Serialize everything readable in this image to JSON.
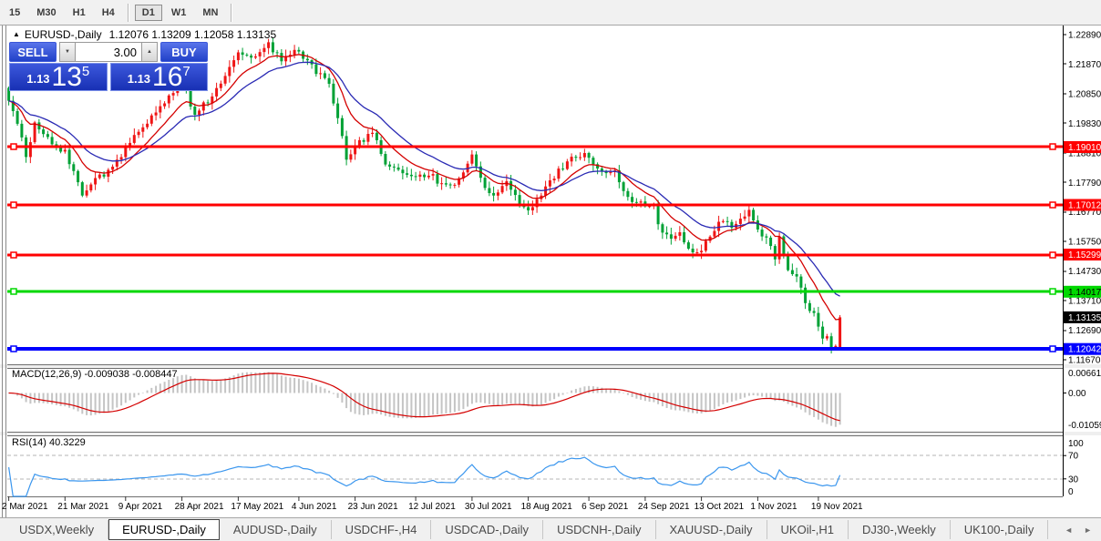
{
  "toolbar": {
    "timeframes": [
      {
        "label": "15",
        "active": false
      },
      {
        "label": "M30",
        "active": false
      },
      {
        "label": "H1",
        "active": false
      },
      {
        "label": "H4",
        "active": false
      },
      {
        "label": "D1",
        "active": true
      },
      {
        "label": "W1",
        "active": false
      },
      {
        "label": "MN",
        "active": false
      }
    ],
    "separators_after": [
      3,
      6
    ]
  },
  "title": {
    "collapse_icon": "▲",
    "symbol": "EURUSD-,Daily",
    "ohlc": "1.12076 1.13209 1.12058 1.13135"
  },
  "trade_panel": {
    "sell_label": "SELL",
    "buy_label": "BUY",
    "volume": "3.00",
    "decrease_icon": "▼",
    "increase_icon": "▲",
    "sell_price_prefix": "1.13",
    "sell_price_big": "13",
    "sell_price_sup": "5",
    "buy_price_prefix": "1.13",
    "buy_price_big": "16",
    "buy_price_sup": "7"
  },
  "tabs": {
    "items": [
      {
        "label": "USDX,Weekly",
        "active": false
      },
      {
        "label": "EURUSD-,Daily",
        "active": true
      },
      {
        "label": "AUDUSD-,Daily",
        "active": false
      },
      {
        "label": "USDCHF-,H4",
        "active": false
      },
      {
        "label": "USDCAD-,Daily",
        "active": false
      },
      {
        "label": "USDCNH-,Daily",
        "active": false
      },
      {
        "label": "XAUUSD-,Daily",
        "active": false
      },
      {
        "label": "UKOil-,H1",
        "active": false
      },
      {
        "label": "DJ30-,Weekly",
        "active": false
      },
      {
        "label": "UK100-,Daily",
        "active": false
      }
    ],
    "scroll_left": "◄",
    "scroll_right": "►"
  },
  "chart_data": [
    {
      "type": "candlestick",
      "title": "EURUSD-,Daily",
      "bars": 193,
      "last_bar_ohlc": {
        "open": 1.12076,
        "high": 1.13209,
        "low": 1.12058,
        "close": 1.13135
      },
      "up_color": "#ef1515",
      "down_color": "#00a135",
      "ma_lines": [
        {
          "period": 10,
          "color": "#d40000"
        },
        {
          "period": 20,
          "color": "#2a2ab4"
        }
      ],
      "horizontal_lines": [
        {
          "value": 1.1901,
          "label": "1.19010",
          "color": "#ff0000",
          "width": 3,
          "text_color": "#ffffff"
        },
        {
          "value": 1.17012,
          "label": "1.17012",
          "color": "#ff0000",
          "width": 3,
          "text_color": "#ffffff"
        },
        {
          "value": 1.15299,
          "label": "1.15299",
          "color": "#ff0000",
          "width": 3,
          "text_color": "#ffffff"
        },
        {
          "value": 1.14017,
          "label": "1.14017",
          "color": "#00d800",
          "width": 3,
          "text_color": "#000000"
        },
        {
          "value": 1.12042,
          "label": "1.12042",
          "color": "#0000ff",
          "width": 4,
          "text_color": "#ffffff"
        }
      ],
      "current_price_badge": {
        "label": "1.13135",
        "bg": "#000000",
        "text_color": "#ffffff"
      },
      "y_ticks": [
        1.2289,
        1.2187,
        1.2085,
        1.1983,
        1.1881,
        1.1779,
        1.1677,
        1.1575,
        1.1473,
        1.1371,
        1.1269,
        1.1167
      ],
      "x_ticks": [
        {
          "bar": 0,
          "label": "2 Mar 2021"
        },
        {
          "bar": 13,
          "label": "21 Mar 2021"
        },
        {
          "bar": 27,
          "label": "9 Apr 2021"
        },
        {
          "bar": 40,
          "label": "28 Apr 2021"
        },
        {
          "bar": 53,
          "label": "17 May 2021"
        },
        {
          "bar": 67,
          "label": "4 Jun 2021"
        },
        {
          "bar": 80,
          "label": "23 Jun 2021"
        },
        {
          "bar": 94,
          "label": "12 Jul 2021"
        },
        {
          "bar": 107,
          "label": "30 Jul 2021"
        },
        {
          "bar": 120,
          "label": "18 Aug 2021"
        },
        {
          "bar": 134,
          "label": "6 Sep 2021"
        },
        {
          "bar": 147,
          "label": "24 Sep 2021"
        },
        {
          "bar": 160,
          "label": "13 Oct 2021"
        },
        {
          "bar": 173,
          "label": "1 Nov 2021"
        },
        {
          "bar": 187,
          "label": "19 Nov 2021"
        }
      ],
      "close_keyframes": [
        [
          0,
          1.207
        ],
        [
          2,
          1.1975
        ],
        [
          4,
          1.187
        ],
        [
          6,
          1.198
        ],
        [
          10,
          1.1915
        ],
        [
          13,
          1.188
        ],
        [
          17,
          1.1745
        ],
        [
          20,
          1.179
        ],
        [
          24,
          1.183
        ],
        [
          31,
          1.1975
        ],
        [
          40,
          1.2125
        ],
        [
          43,
          1.201
        ],
        [
          47,
          1.208
        ],
        [
          53,
          1.223
        ],
        [
          57,
          1.2215
        ],
        [
          60,
          1.2255
        ],
        [
          63,
          1.2195
        ],
        [
          66,
          1.224
        ],
        [
          70,
          1.218
        ],
        [
          74,
          1.212
        ],
        [
          76,
          1.199
        ],
        [
          78,
          1.1865
        ],
        [
          81,
          1.192
        ],
        [
          84,
          1.1945
        ],
        [
          87,
          1.185
        ],
        [
          90,
          1.1815
        ],
        [
          94,
          1.179
        ],
        [
          97,
          1.181
        ],
        [
          100,
          1.177
        ],
        [
          103,
          1.1775
        ],
        [
          107,
          1.1865
        ],
        [
          110,
          1.176
        ],
        [
          113,
          1.1735
        ],
        [
          115,
          1.179
        ],
        [
          118,
          1.171
        ],
        [
          120,
          1.1675
        ],
        [
          123,
          1.1745
        ],
        [
          126,
          1.1795
        ],
        [
          130,
          1.1875
        ],
        [
          134,
          1.187
        ],
        [
          137,
          1.1815
        ],
        [
          140,
          1.182
        ],
        [
          143,
          1.173
        ],
        [
          147,
          1.17
        ],
        [
          149,
          1.169
        ],
        [
          151,
          1.16
        ],
        [
          153,
          1.158
        ],
        [
          155,
          1.16
        ],
        [
          157,
          1.1555
        ],
        [
          159,
          1.153
        ],
        [
          162,
          1.16
        ],
        [
          165,
          1.165
        ],
        [
          168,
          1.1625
        ],
        [
          171,
          1.168
        ],
        [
          173,
          1.1605
        ],
        [
          175,
          1.158
        ],
        [
          177,
          1.152
        ],
        [
          178,
          1.159
        ],
        [
          180,
          1.148
        ],
        [
          182,
          1.145
        ],
        [
          184,
          1.137
        ],
        [
          186,
          1.132
        ],
        [
          187,
          1.129
        ],
        [
          188,
          1.1238
        ],
        [
          189,
          1.125
        ],
        [
          190,
          1.12
        ],
        [
          191,
          1.121
        ],
        [
          192,
          1.13135
        ]
      ]
    },
    {
      "type": "bar",
      "subtype": "macd-histogram-with-signal-line",
      "label": "MACD(12,26,9) -0.009038 -0.008447",
      "params": [
        12,
        26,
        9
      ],
      "current_macd": -0.009038,
      "current_signal": -0.008447,
      "histogram_color": "#c4c4c4",
      "signal_color": "#d40000",
      "y_axis_labels": [
        "0.006611",
        "0.00",
        "-0.01059"
      ],
      "derived_from": "price pane closes"
    },
    {
      "type": "line",
      "subtype": "rsi",
      "label": "RSI(14) 40.3229",
      "period": 14,
      "current": 40.3229,
      "line_color": "#3a96ee",
      "levels": [
        70,
        30
      ],
      "y_axis_labels": [
        "100",
        "70",
        "30",
        "0"
      ],
      "derived_from": "price pane closes"
    }
  ]
}
